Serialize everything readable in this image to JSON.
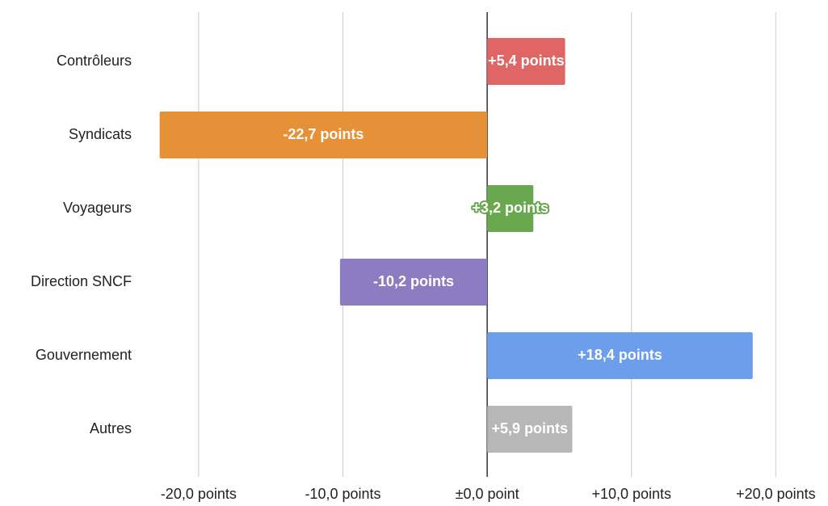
{
  "chart_data": {
    "type": "hbar",
    "categories": [
      "Contrôleurs",
      "Syndicats",
      "Voyageurs",
      "Direction SNCF",
      "Gouvernement",
      "Autres"
    ],
    "values": [
      5.4,
      -22.7,
      3.2,
      -10.2,
      18.4,
      5.9
    ],
    "value_labels": [
      "+5,4 points",
      "-22,7 points",
      "+3,2 points",
      "-10,2 points",
      "+18,4 points",
      "+5,9 points"
    ],
    "colors": [
      "#e06666",
      "#e69138",
      "#6aa84f",
      "#8e7cc3",
      "#6d9eeb",
      "#b7b7b7"
    ],
    "xlim": [
      -24,
      22
    ],
    "xticks": [
      {
        "value": -20,
        "label": "-20,0 points"
      },
      {
        "value": -10,
        "label": "-10,0 points"
      },
      {
        "value": 0,
        "label": "±0,0 point"
      },
      {
        "value": 10,
        "label": "+10,0 points"
      },
      {
        "value": 20,
        "label": "+20,0 points"
      }
    ],
    "grid": true
  }
}
